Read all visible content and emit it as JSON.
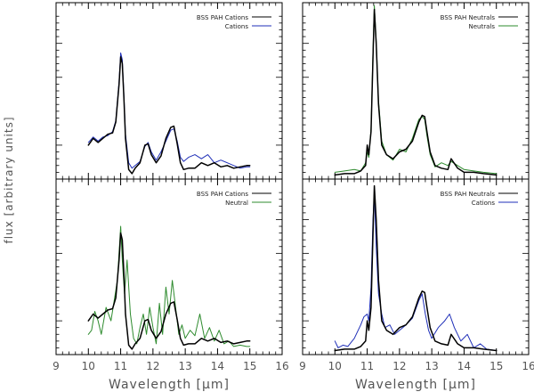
{
  "figure": {
    "ylabel": "flux [arbitrary units]",
    "xlabel_left": "Wavelength [μm]",
    "xlabel_right": "Wavelength [μm]"
  },
  "chart_data": [
    {
      "type": "line",
      "position": "top-left",
      "xlim": [
        9,
        16
      ],
      "ylim": [
        0,
        1.3
      ],
      "xticks": [
        9,
        10,
        11,
        12,
        13,
        14,
        15,
        16
      ],
      "show_tick_labels": false,
      "legend_position": "top-right",
      "series": [
        {
          "name": "BSS PAH Cations",
          "color": "#000000",
          "width": 1.5,
          "x": [
            10.0,
            10.15,
            10.3,
            10.45,
            10.6,
            10.75,
            10.85,
            10.95,
            11.0,
            11.05,
            11.1,
            11.15,
            11.25,
            11.35,
            11.45,
            11.6,
            11.75,
            11.85,
            11.95,
            12.1,
            12.25,
            12.4,
            12.55,
            12.65,
            12.75,
            12.85,
            12.95,
            13.1,
            13.3,
            13.5,
            13.7,
            13.9,
            14.1,
            14.3,
            14.5,
            14.7,
            14.9,
            15.0
          ],
          "y": [
            0.25,
            0.3,
            0.27,
            0.3,
            0.33,
            0.34,
            0.42,
            0.7,
            0.9,
            0.85,
            0.6,
            0.3,
            0.07,
            0.04,
            0.08,
            0.12,
            0.25,
            0.26,
            0.18,
            0.12,
            0.17,
            0.3,
            0.38,
            0.39,
            0.26,
            0.12,
            0.07,
            0.08,
            0.08,
            0.12,
            0.1,
            0.12,
            0.09,
            0.1,
            0.08,
            0.09,
            0.1,
            0.1
          ]
        },
        {
          "name": "Cations",
          "color": "#1f2fb8",
          "width": 1,
          "x": [
            10.0,
            10.15,
            10.3,
            10.45,
            10.6,
            10.75,
            10.85,
            10.95,
            11.0,
            11.05,
            11.1,
            11.15,
            11.25,
            11.35,
            11.45,
            11.6,
            11.75,
            11.85,
            11.95,
            12.1,
            12.25,
            12.4,
            12.55,
            12.65,
            12.75,
            12.85,
            12.95,
            13.1,
            13.3,
            13.5,
            13.7,
            13.9,
            14.1,
            14.3,
            14.5,
            14.7,
            14.9,
            15.0
          ],
          "y": [
            0.27,
            0.31,
            0.28,
            0.31,
            0.32,
            0.35,
            0.43,
            0.72,
            0.93,
            0.88,
            0.62,
            0.33,
            0.12,
            0.08,
            0.1,
            0.13,
            0.24,
            0.27,
            0.2,
            0.14,
            0.2,
            0.28,
            0.36,
            0.37,
            0.28,
            0.16,
            0.13,
            0.16,
            0.18,
            0.15,
            0.18,
            0.12,
            0.14,
            0.12,
            0.1,
            0.08,
            0.09,
            0.09
          ]
        }
      ]
    },
    {
      "type": "line",
      "position": "top-right",
      "xlim": [
        9,
        16
      ],
      "ylim": [
        0,
        1.3
      ],
      "xticks": [
        9,
        10,
        11,
        12,
        13,
        14,
        15,
        16
      ],
      "show_tick_labels": false,
      "legend_position": "top-right",
      "series": [
        {
          "name": "BSS PAH Neutrals",
          "color": "#000000",
          "width": 1.5,
          "x": [
            10.0,
            10.3,
            10.6,
            10.8,
            10.95,
            11.0,
            11.05,
            11.12,
            11.18,
            11.22,
            11.28,
            11.35,
            11.45,
            11.6,
            11.8,
            12.0,
            12.2,
            12.4,
            12.6,
            12.7,
            12.78,
            12.85,
            12.95,
            13.1,
            13.3,
            13.5,
            13.6,
            13.8,
            14.0,
            14.3,
            14.6,
            15.0
          ],
          "y": [
            0.03,
            0.04,
            0.04,
            0.06,
            0.1,
            0.25,
            0.18,
            0.35,
            0.9,
            1.25,
            1.0,
            0.55,
            0.25,
            0.18,
            0.15,
            0.2,
            0.22,
            0.28,
            0.42,
            0.47,
            0.46,
            0.35,
            0.2,
            0.1,
            0.08,
            0.07,
            0.15,
            0.08,
            0.05,
            0.05,
            0.04,
            0.03
          ]
        },
        {
          "name": "Neutrals",
          "color": "#2e8b2e",
          "width": 1,
          "x": [
            10.0,
            10.3,
            10.6,
            10.8,
            10.95,
            11.0,
            11.05,
            11.12,
            11.18,
            11.22,
            11.28,
            11.35,
            11.45,
            11.6,
            11.8,
            12.0,
            12.2,
            12.4,
            12.6,
            12.7,
            12.78,
            12.85,
            12.95,
            13.1,
            13.3,
            13.5,
            13.6,
            13.8,
            14.0,
            14.3,
            14.6,
            15.0
          ],
          "y": [
            0.05,
            0.06,
            0.07,
            0.06,
            0.12,
            0.2,
            0.16,
            0.37,
            0.95,
            1.28,
            1.02,
            0.58,
            0.28,
            0.18,
            0.14,
            0.22,
            0.2,
            0.3,
            0.44,
            0.46,
            0.44,
            0.32,
            0.18,
            0.09,
            0.12,
            0.1,
            0.13,
            0.1,
            0.07,
            0.06,
            0.05,
            0.04
          ]
        }
      ]
    },
    {
      "type": "line",
      "position": "bottom-left",
      "xlim": [
        9,
        16
      ],
      "ylim": [
        0,
        1.3
      ],
      "xticks": [
        9,
        10,
        11,
        12,
        13,
        14,
        15,
        16
      ],
      "show_tick_labels": true,
      "legend_position": "top-right",
      "series": [
        {
          "name": "BSS PAH Cations",
          "color": "#000000",
          "width": 1.5,
          "x": [
            10.0,
            10.15,
            10.3,
            10.45,
            10.6,
            10.75,
            10.85,
            10.95,
            11.0,
            11.05,
            11.1,
            11.15,
            11.25,
            11.35,
            11.45,
            11.6,
            11.75,
            11.85,
            11.95,
            12.1,
            12.25,
            12.4,
            12.55,
            12.65,
            12.75,
            12.85,
            12.95,
            13.1,
            13.3,
            13.5,
            13.7,
            13.9,
            14.1,
            14.3,
            14.5,
            14.7,
            14.9,
            15.0
          ],
          "y": [
            0.25,
            0.3,
            0.27,
            0.3,
            0.33,
            0.34,
            0.42,
            0.7,
            0.9,
            0.85,
            0.6,
            0.3,
            0.07,
            0.04,
            0.08,
            0.12,
            0.25,
            0.26,
            0.18,
            0.12,
            0.17,
            0.3,
            0.38,
            0.39,
            0.26,
            0.12,
            0.07,
            0.08,
            0.08,
            0.12,
            0.1,
            0.12,
            0.09,
            0.1,
            0.08,
            0.09,
            0.1,
            0.1
          ]
        },
        {
          "name": "Neutral",
          "color": "#2e8b2e",
          "width": 1,
          "x": [
            10.0,
            10.1,
            10.2,
            10.3,
            10.4,
            10.55,
            10.7,
            10.8,
            10.9,
            11.0,
            11.05,
            11.12,
            11.2,
            11.3,
            11.4,
            11.5,
            11.6,
            11.7,
            11.8,
            11.9,
            12.0,
            12.1,
            12.2,
            12.3,
            12.4,
            12.5,
            12.6,
            12.7,
            12.8,
            12.9,
            13.0,
            13.15,
            13.3,
            13.45,
            13.6,
            13.75,
            13.9,
            14.05,
            14.2,
            14.35,
            14.5,
            14.7,
            14.9,
            15.0
          ],
          "y": [
            0.15,
            0.18,
            0.32,
            0.25,
            0.15,
            0.35,
            0.25,
            0.4,
            0.55,
            0.95,
            0.7,
            0.45,
            0.7,
            0.3,
            0.12,
            0.08,
            0.2,
            0.3,
            0.15,
            0.35,
            0.2,
            0.08,
            0.38,
            0.15,
            0.5,
            0.3,
            0.55,
            0.35,
            0.15,
            0.22,
            0.12,
            0.18,
            0.14,
            0.3,
            0.12,
            0.2,
            0.1,
            0.18,
            0.08,
            0.1,
            0.06,
            0.07,
            0.06,
            0.06
          ]
        }
      ]
    },
    {
      "type": "line",
      "position": "bottom-right",
      "xlim": [
        9,
        16
      ],
      "ylim": [
        0,
        1.3
      ],
      "xticks": [
        9,
        10,
        11,
        12,
        13,
        14,
        15,
        16
      ],
      "show_tick_labels": true,
      "legend_position": "top-right",
      "series": [
        {
          "name": "BSS PAH Neutrals",
          "color": "#000000",
          "width": 1.5,
          "x": [
            10.0,
            10.3,
            10.6,
            10.8,
            10.95,
            11.0,
            11.05,
            11.12,
            11.18,
            11.22,
            11.28,
            11.35,
            11.45,
            11.6,
            11.8,
            12.0,
            12.2,
            12.4,
            12.6,
            12.7,
            12.78,
            12.85,
            12.95,
            13.1,
            13.3,
            13.5,
            13.6,
            13.8,
            14.0,
            14.3,
            14.6,
            15.0
          ],
          "y": [
            0.03,
            0.04,
            0.04,
            0.06,
            0.1,
            0.25,
            0.18,
            0.35,
            0.9,
            1.25,
            1.0,
            0.55,
            0.25,
            0.18,
            0.15,
            0.2,
            0.22,
            0.28,
            0.42,
            0.47,
            0.46,
            0.35,
            0.2,
            0.1,
            0.08,
            0.07,
            0.15,
            0.08,
            0.05,
            0.05,
            0.04,
            0.03
          ]
        },
        {
          "name": "Cations",
          "color": "#1f2fb8",
          "width": 1,
          "x": [
            10.0,
            10.1,
            10.25,
            10.4,
            10.6,
            10.8,
            10.9,
            11.0,
            11.05,
            11.12,
            11.18,
            11.22,
            11.28,
            11.35,
            11.45,
            11.55,
            11.7,
            11.85,
            12.0,
            12.2,
            12.4,
            12.6,
            12.7,
            12.8,
            12.9,
            13.0,
            13.2,
            13.4,
            13.55,
            13.7,
            13.9,
            14.1,
            14.3,
            14.5,
            14.7,
            15.0
          ],
          "y": [
            0.1,
            0.05,
            0.07,
            0.06,
            0.12,
            0.22,
            0.28,
            0.3,
            0.25,
            0.5,
            1.0,
            1.2,
            0.8,
            0.45,
            0.3,
            0.2,
            0.22,
            0.15,
            0.18,
            0.22,
            0.27,
            0.4,
            0.45,
            0.3,
            0.18,
            0.12,
            0.2,
            0.25,
            0.3,
            0.2,
            0.1,
            0.15,
            0.05,
            0.08,
            0.04,
            0.03
          ]
        }
      ]
    }
  ]
}
